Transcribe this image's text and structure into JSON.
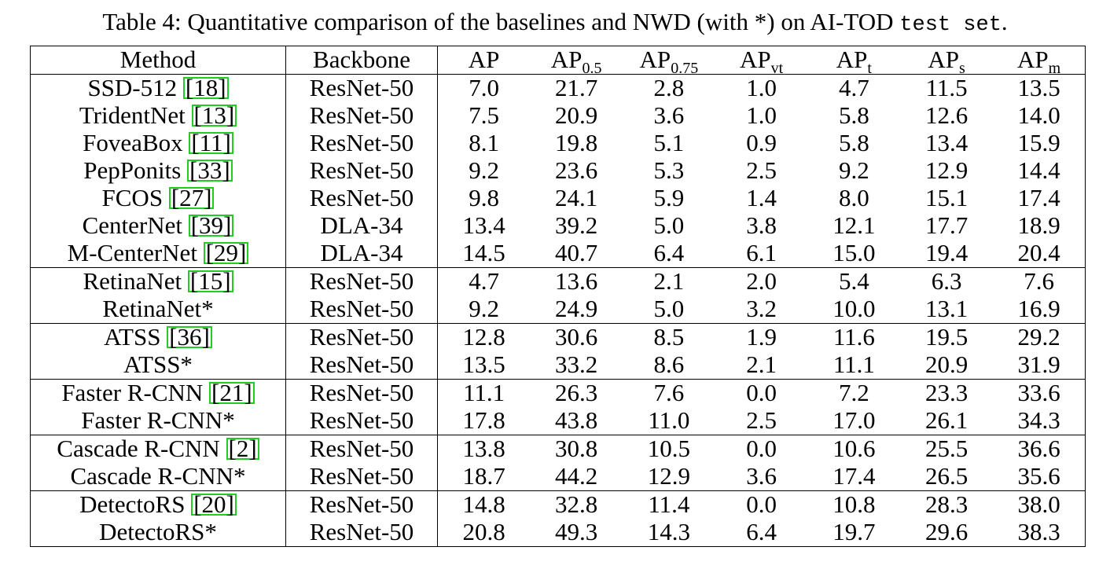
{
  "caption": {
    "prefix": "Table 4: Quantitative comparison of the baselines and NWD (with *) on AI-TOD ",
    "mono": "test set",
    "suffix": "."
  },
  "headers": {
    "method": "Method",
    "backbone": "Backbone",
    "ap": "AP",
    "ap05": {
      "base": "AP",
      "sub": "0.5"
    },
    "ap075": {
      "base": "AP",
      "sub": "0.75"
    },
    "apvt": {
      "base": "AP",
      "sub": "vt"
    },
    "apt": {
      "base": "AP",
      "sub": "t"
    },
    "aps": {
      "base": "AP",
      "sub": "s"
    },
    "apm": {
      "base": "AP",
      "sub": "m"
    }
  },
  "rows": [
    {
      "method": "SSD-512 ",
      "cite": "[18]",
      "backbone": "ResNet-50",
      "values": [
        "7.0",
        "21.7",
        "2.8",
        "1.0",
        "4.7",
        "11.5",
        "13.5"
      ],
      "group_start": false,
      "bold": false
    },
    {
      "method": "TridentNet ",
      "cite": "[13]",
      "backbone": "ResNet-50",
      "values": [
        "7.5",
        "20.9",
        "3.6",
        "1.0",
        "5.8",
        "12.6",
        "14.0"
      ],
      "group_start": false,
      "bold": false
    },
    {
      "method": "FoveaBox ",
      "cite": "[11]",
      "backbone": "ResNet-50",
      "values": [
        "8.1",
        "19.8",
        "5.1",
        "0.9",
        "5.8",
        "13.4",
        "15.9"
      ],
      "group_start": false,
      "bold": false
    },
    {
      "method": "PepPonits ",
      "cite": "[33]",
      "backbone": "ResNet-50",
      "values": [
        "9.2",
        "23.6",
        "5.3",
        "2.5",
        "9.2",
        "12.9",
        "14.4"
      ],
      "group_start": false,
      "bold": false
    },
    {
      "method": "FCOS ",
      "cite": "[27]",
      "backbone": "ResNet-50",
      "values": [
        "9.8",
        "24.1",
        "5.9",
        "1.4",
        "8.0",
        "15.1",
        "17.4"
      ],
      "group_start": false,
      "bold": false
    },
    {
      "method": "CenterNet ",
      "cite": "[39]",
      "backbone": "DLA-34",
      "values": [
        "13.4",
        "39.2",
        "5.0",
        "3.8",
        "12.1",
        "17.7",
        "18.9"
      ],
      "group_start": false,
      "bold": false
    },
    {
      "method": "M-CenterNet ",
      "cite": "[29]",
      "backbone": "DLA-34",
      "values": [
        "14.5",
        "40.7",
        "6.4",
        "6.1",
        "15.0",
        "19.4",
        "20.4"
      ],
      "group_start": false,
      "bold": false
    },
    {
      "method": "RetinaNet ",
      "cite": "[15]",
      "backbone": "ResNet-50",
      "values": [
        "4.7",
        "13.6",
        "2.1",
        "2.0",
        "5.4",
        "6.3",
        "7.6"
      ],
      "group_start": true,
      "bold": false
    },
    {
      "method": "RetinaNet*",
      "cite": "",
      "backbone": "ResNet-50",
      "values": [
        "9.2",
        "24.9",
        "5.0",
        "3.2",
        "10.0",
        "13.1",
        "16.9"
      ],
      "group_start": false,
      "bold": false
    },
    {
      "method": "ATSS ",
      "cite": "[36]",
      "backbone": "ResNet-50",
      "values": [
        "12.8",
        "30.6",
        "8.5",
        "1.9",
        "11.6",
        "19.5",
        "29.2"
      ],
      "group_start": true,
      "bold": false
    },
    {
      "method": "ATSS*",
      "cite": "",
      "backbone": "ResNet-50",
      "values": [
        "13.5",
        "33.2",
        "8.6",
        "2.1",
        "11.1",
        "20.9",
        "31.9"
      ],
      "group_start": false,
      "bold": false
    },
    {
      "method": "Faster R-CNN ",
      "cite": "[21]",
      "backbone": "ResNet-50",
      "values": [
        "11.1",
        "26.3",
        "7.6",
        "0.0",
        "7.2",
        "23.3",
        "33.6"
      ],
      "group_start": true,
      "bold": false
    },
    {
      "method": "Faster R-CNN*",
      "cite": "",
      "backbone": "ResNet-50",
      "values": [
        "17.8",
        "43.8",
        "11.0",
        "2.5",
        "17.0",
        "26.1",
        "34.3"
      ],
      "group_start": false,
      "bold": false
    },
    {
      "method": "Cascade R-CNN ",
      "cite": "[2]",
      "backbone": "ResNet-50",
      "values": [
        "13.8",
        "30.8",
        "10.5",
        "0.0",
        "10.6",
        "25.5",
        "36.6"
      ],
      "group_start": true,
      "bold": false
    },
    {
      "method": "Cascade R-CNN*",
      "cite": "",
      "backbone": "ResNet-50",
      "values": [
        "18.7",
        "44.2",
        "12.9",
        "3.6",
        "17.4",
        "26.5",
        "35.6"
      ],
      "group_start": false,
      "bold": false
    },
    {
      "method": "DetectoRS ",
      "cite": "[20]",
      "backbone": "ResNet-50",
      "values": [
        "14.8",
        "32.8",
        "11.4",
        "0.0",
        "10.8",
        "28.3",
        "38.0"
      ],
      "group_start": true,
      "bold": false
    },
    {
      "method": "DetectoRS*",
      "cite": "",
      "backbone": "ResNet-50",
      "values": [
        "20.8",
        "49.3",
        "14.3",
        "6.4",
        "19.7",
        "29.6",
        "38.3"
      ],
      "group_start": false,
      "bold": true
    }
  ],
  "colors": {
    "cite_border": "#22cc22",
    "text": "#000000"
  }
}
